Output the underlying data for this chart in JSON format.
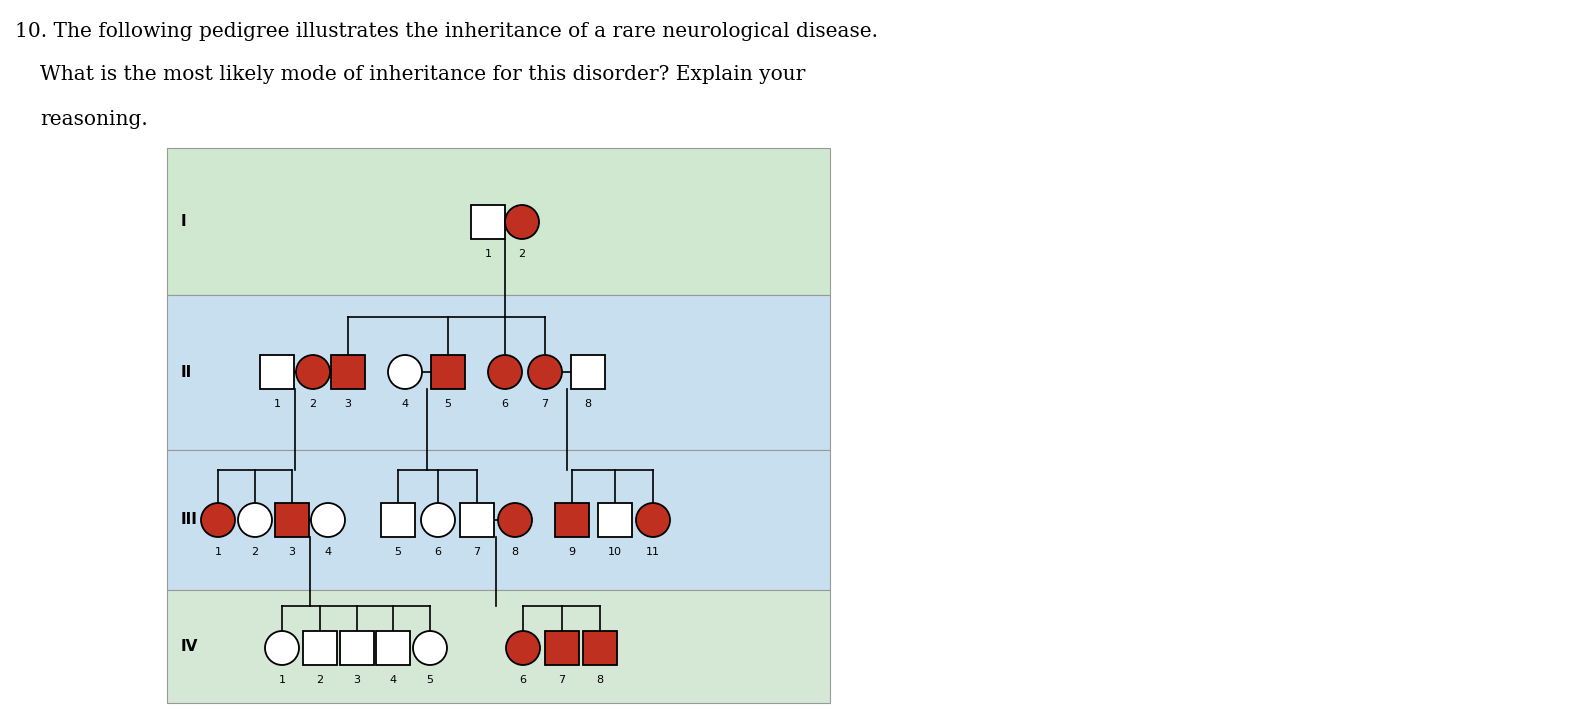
{
  "title_line1": "10. The following pedigree illustrates the inheritance of a rare neurological disease.",
  "title_line2": "    What is the most likely mode of inheritance for this disorder? Explain your",
  "title_line3": "    reasoning.",
  "bg_color": "#ffffff",
  "gen_colors": {
    "I": "#cfe8cf",
    "II": "#c8dff0",
    "III": "#c8dff0",
    "IV": "#d5e8d5"
  },
  "affected_color": "#bf3020",
  "unaffected_fill": "#ffffff",
  "border_color": "#000000"
}
